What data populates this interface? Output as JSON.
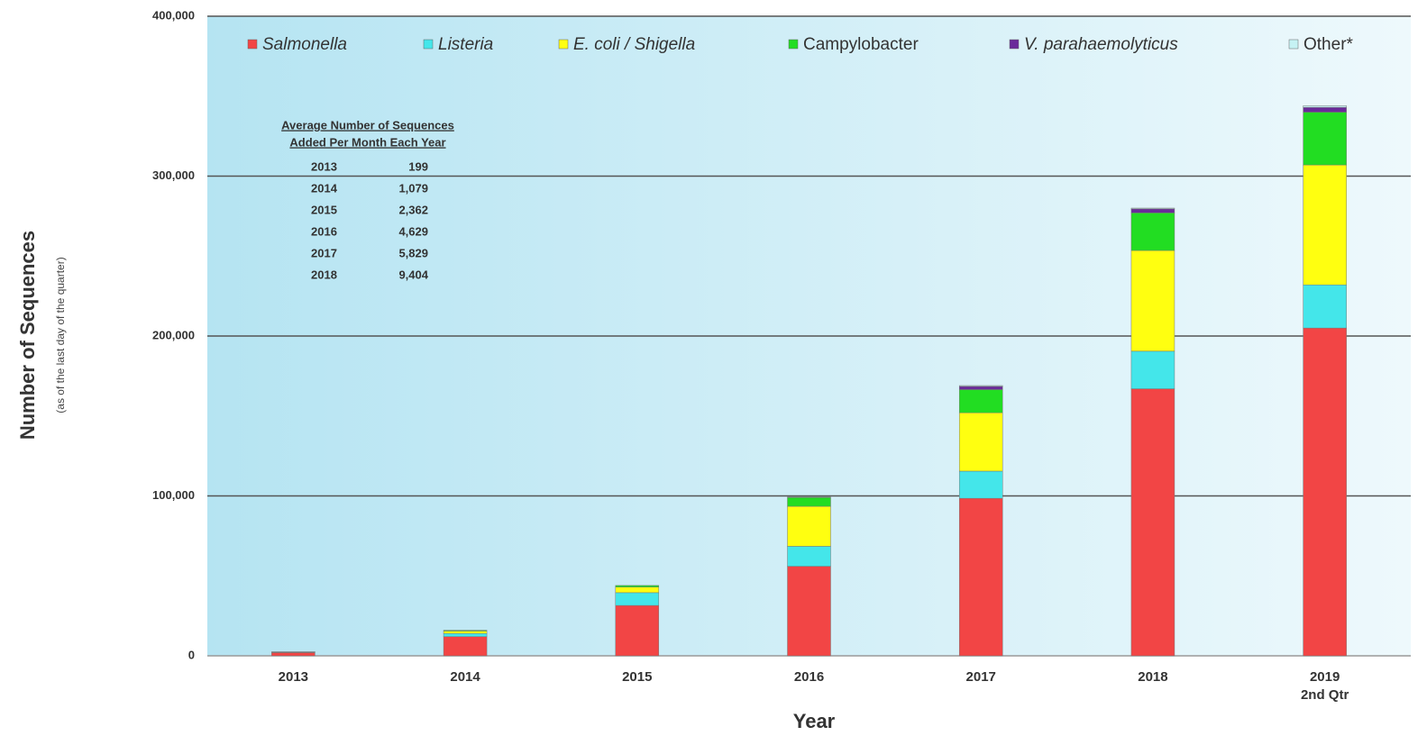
{
  "chart_data": {
    "type": "stacked_bar",
    "x_label": "Year",
    "y_label": "Number of Sequences",
    "y_sublabel": "(as of the last day of the quarter)",
    "categories": [
      "2013",
      "2014",
      "2015",
      "2016",
      "2017",
      "2018",
      "2019\n2nd Qtr"
    ],
    "series": [
      {
        "name": "Salmonella",
        "color": "#f24545",
        "values": [
          2000,
          12000,
          31500,
          56000,
          98500,
          167000,
          205000
        ]
      },
      {
        "name": "Listeria",
        "color": "#44e6ea",
        "values": [
          300,
          2000,
          8000,
          12500,
          17000,
          23500,
          27000
        ]
      },
      {
        "name": "E. coli / Shigella",
        "color": "#ffff10",
        "values": [
          100,
          1500,
          3500,
          25000,
          36500,
          63000,
          75000
        ]
      },
      {
        "name": "Campylobacter",
        "color": "#22dd22",
        "values": [
          50,
          500,
          1000,
          5500,
          14500,
          23500,
          33000
        ]
      },
      {
        "name": "V. parahaemolyticus",
        "color": "#6a2a9a",
        "values": [
          0,
          0,
          0,
          300,
          2000,
          2500,
          3000
        ]
      },
      {
        "name": "Other*",
        "color": "#c6f2f4",
        "values": [
          50,
          0,
          0,
          0,
          500,
          500,
          1000
        ]
      }
    ],
    "ylim": [
      0,
      400000
    ],
    "yticks": [
      0,
      {
        "value": 100000,
        "label": "100,000"
      },
      {
        "value": 200000,
        "label": "200,000"
      },
      {
        "value": 300000,
        "label": "300,000"
      },
      {
        "value": 400000,
        "label": "400,000"
      }
    ],
    "grid": true,
    "legend": "top",
    "inset": {
      "title": [
        "Average Number of Sequences",
        "Added Per Month Each Year"
      ],
      "rows": [
        [
          "2013",
          "199"
        ],
        [
          "2014",
          "1,079"
        ],
        [
          "2015",
          "2,362"
        ],
        [
          "2016",
          "4,629"
        ],
        [
          "2017",
          "5,829"
        ],
        [
          "2018",
          "9,404"
        ]
      ]
    }
  }
}
